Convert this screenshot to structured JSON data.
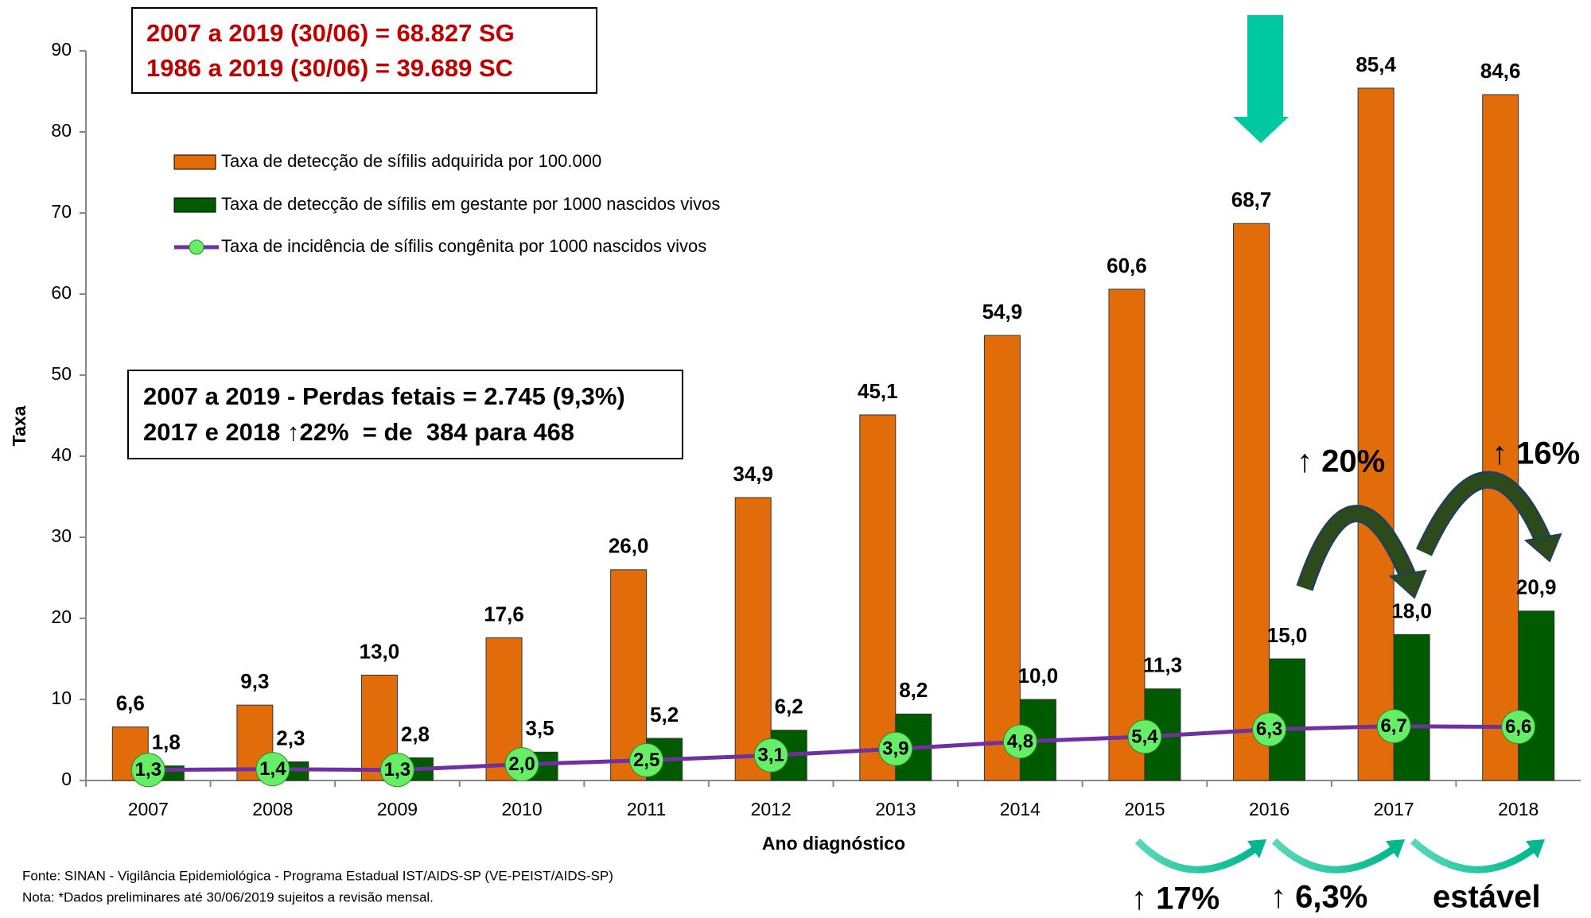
{
  "chart_data": {
    "type": "bar",
    "categories": [
      "2007",
      "2008",
      "2009",
      "2010",
      "2011",
      "2012",
      "2013",
      "2014",
      "2015",
      "2016",
      "2017",
      "2018"
    ],
    "series": [
      {
        "name": "Taxa de detecção de sífilis adquirida por 100.000",
        "type": "bar",
        "color": "#e36c0a",
        "values": [
          6.6,
          9.3,
          13.0,
          17.6,
          26.0,
          34.9,
          45.1,
          54.9,
          60.6,
          68.7,
          85.4,
          84.6
        ],
        "value_labels": [
          "6,6",
          "9,3",
          "13,0",
          "17,6",
          "26,0",
          "34,9",
          "45,1",
          "54,9",
          "60,6",
          "68,7",
          "85,4",
          "84,6"
        ]
      },
      {
        "name": "Taxa de detecção de sífilis em gestante por 1000 nascidos vivos",
        "type": "bar",
        "color": "#005a00",
        "values": [
          1.8,
          2.3,
          2.8,
          3.5,
          5.2,
          6.2,
          8.2,
          10.0,
          11.3,
          15.0,
          18.0,
          20.9
        ],
        "value_labels": [
          "1,8",
          "2,3",
          "2,8",
          "3,5",
          "5,2",
          "6,2",
          "8,2",
          "10,0",
          "11,3",
          "15,0",
          "18,0",
          "20,9"
        ]
      },
      {
        "name": "Taxa de incidência de sífilis congênita por 1000 nascidos vivos",
        "type": "line",
        "color": "#7030a0",
        "marker_color": "#66ee66",
        "values": [
          1.3,
          1.4,
          1.3,
          2.0,
          2.5,
          3.1,
          3.9,
          4.8,
          5.4,
          6.3,
          6.7,
          6.6
        ],
        "value_labels": [
          "1,3",
          "1,4",
          "1,3",
          "2,0",
          "2,5",
          "3,1",
          "3,9",
          "4,8",
          "5,4",
          "6,3",
          "6,7",
          "6,6"
        ]
      }
    ],
    "ylim": [
      0,
      90
    ],
    "yticks": [
      0,
      10,
      20,
      30,
      40,
      50,
      60,
      70,
      80,
      90
    ],
    "y_label": "Taxa",
    "x_label": "Ano diagnóstico",
    "annotations": [
      "2007 a 2019 (30/06) = 68.827 SG",
      "1986 a 2019 (30/06) = 39.689 SC",
      "2007 a 2019 - Perdas fetais = 2.745 (9,3%)",
      "2017 e 2018 ↑22%  = de  384 para 468",
      "↑ 20%",
      "↑ 16%",
      "↑ 17%",
      "↑ 6,3%",
      "estável"
    ],
    "notes": [
      "Fonte: SINAN - Vigilância Epidemiológica - Programa Estadual IST/AIDS-SP (VE-PEIST/AIDS-SP)",
      "Nota: *Dados preliminares até 30/06/2019 sujeitos a revisão mensal."
    ]
  }
}
